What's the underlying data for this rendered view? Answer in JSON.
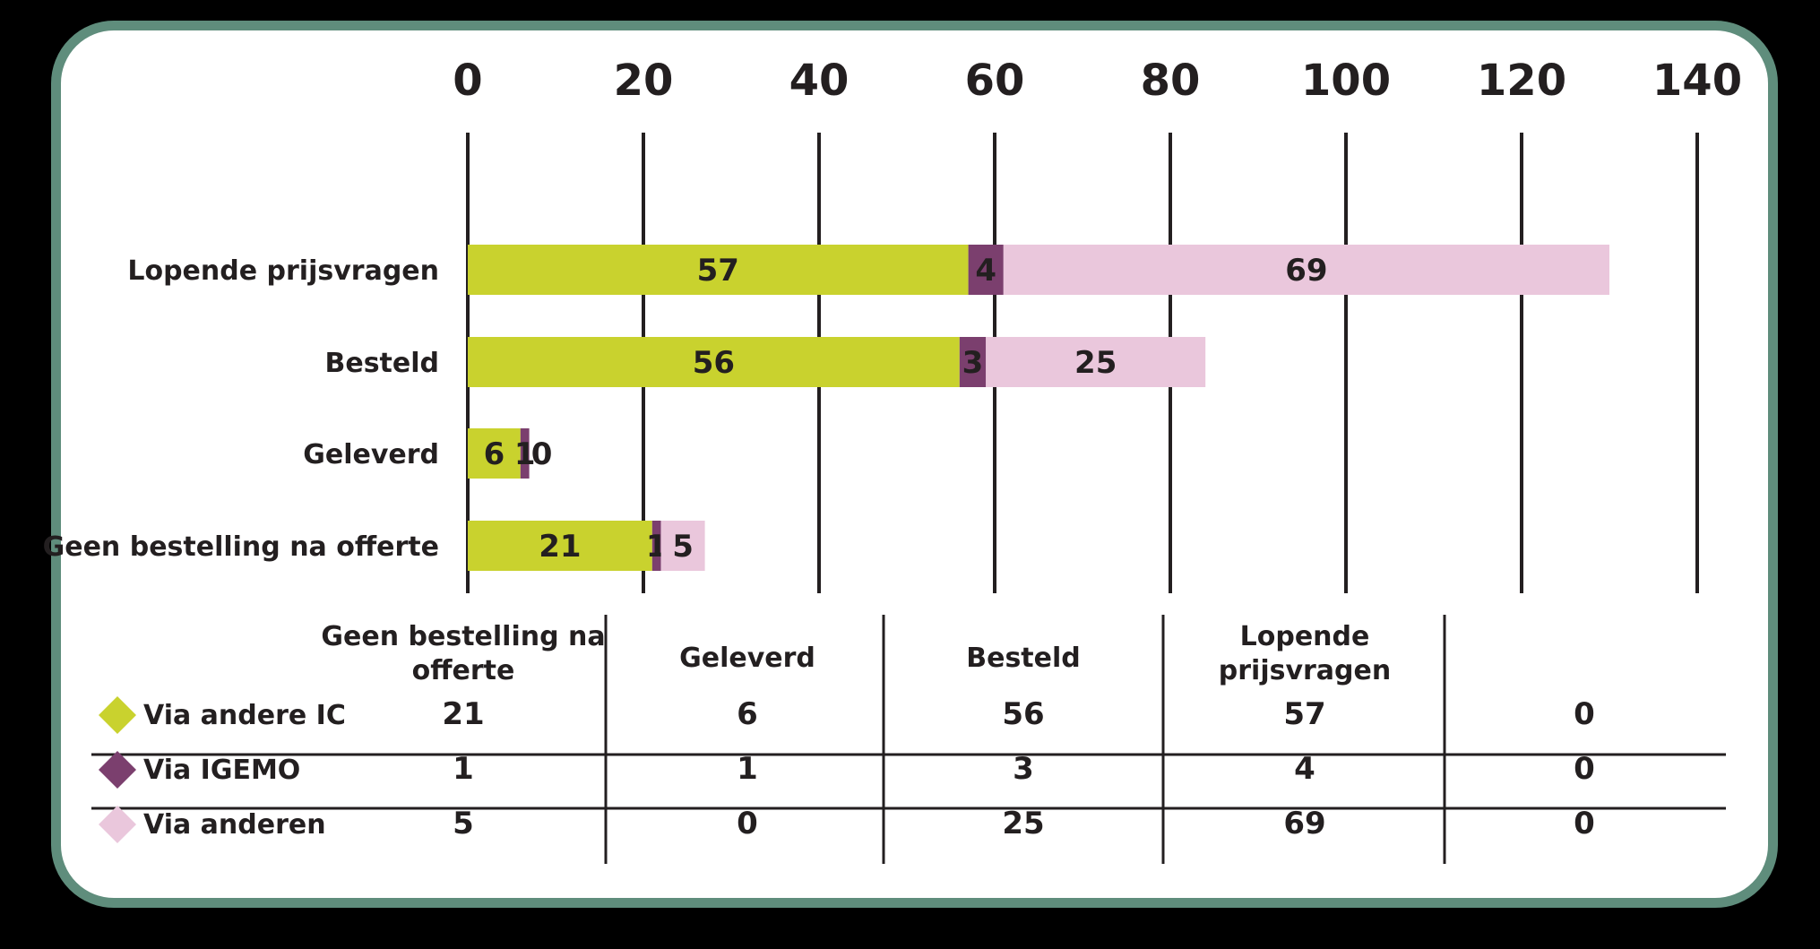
{
  "chart_data": {
    "type": "bar",
    "orientation": "horizontal",
    "stacked": true,
    "categories": [
      "Lopende prijsvragen",
      "Besteld",
      "Geleverd",
      "Geen bestelling na offerte"
    ],
    "series": [
      {
        "name": "Via andere IC",
        "color": "#c9d22e",
        "values": [
          57,
          56,
          6,
          21
        ]
      },
      {
        "name": "Via IGEMO",
        "color": "#7b3f6e",
        "values": [
          4,
          3,
          1,
          1
        ]
      },
      {
        "name": "Via anderen",
        "color": "#eac7dc",
        "values": [
          69,
          25,
          0,
          5
        ]
      }
    ],
    "xlim": [
      0,
      140
    ],
    "xticks": [
      0,
      20,
      40,
      60,
      80,
      100,
      120,
      140
    ],
    "grid": true,
    "data_table": {
      "columns": [
        "Geen bestelling na offerte",
        "Geleverd",
        "Besteld",
        "Lopende prijsvragen",
        ""
      ],
      "rows": [
        {
          "series": "Via andere IC",
          "values": [
            21,
            6,
            56,
            57,
            0
          ]
        },
        {
          "series": "Via IGEMO",
          "values": [
            1,
            1,
            3,
            4,
            0
          ]
        },
        {
          "series": "Via anderen",
          "values": [
            5,
            0,
            25,
            69,
            0
          ]
        }
      ]
    }
  }
}
